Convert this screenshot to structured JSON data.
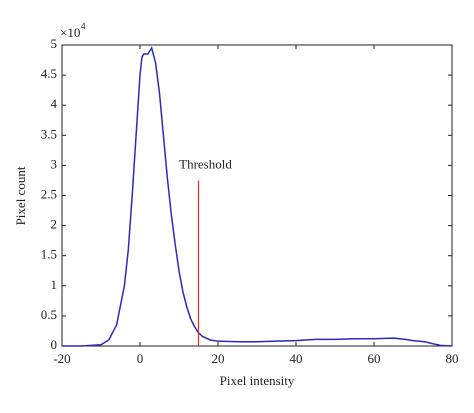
{
  "chart_data": {
    "type": "line",
    "x_label": "Pixel intensity",
    "y_label": "Pixel count",
    "y_scale_label": {
      "base": "×10",
      "exponent": "4"
    },
    "x": [
      -20,
      -15,
      -10,
      -8,
      -6,
      -4,
      -3,
      -2,
      -1,
      0,
      0.5,
      1,
      2,
      3,
      4,
      5,
      6,
      7,
      8,
      9,
      10,
      11,
      12,
      13,
      14,
      15,
      16,
      18,
      20,
      25,
      30,
      35,
      40,
      45,
      50,
      55,
      60,
      65,
      68,
      70,
      73,
      75,
      77,
      80
    ],
    "series": [
      {
        "color": "#2b2bb8",
        "values": [
          0,
          0,
          0.02,
          0.1,
          0.35,
          1.0,
          1.6,
          2.5,
          3.5,
          4.5,
          4.8,
          4.85,
          4.85,
          4.95,
          4.7,
          4.2,
          3.5,
          2.8,
          2.2,
          1.7,
          1.25,
          0.9,
          0.65,
          0.45,
          0.32,
          0.22,
          0.16,
          0.1,
          0.08,
          0.07,
          0.07,
          0.08,
          0.09,
          0.11,
          0.11,
          0.12,
          0.12,
          0.13,
          0.11,
          0.09,
          0.07,
          0.04,
          0.01,
          0
        ]
      }
    ],
    "threshold": {
      "x": 15,
      "y": 2.75,
      "label": "Threshold",
      "color": "#d9302c"
    },
    "xlim": [
      -20,
      80
    ],
    "xticks": [
      -20,
      0,
      20,
      40,
      60,
      80
    ],
    "ylim": [
      0,
      5
    ],
    "yticks": [
      0,
      0.5,
      1,
      1.5,
      2,
      2.5,
      3,
      3.5,
      4,
      4.5,
      5
    ]
  }
}
